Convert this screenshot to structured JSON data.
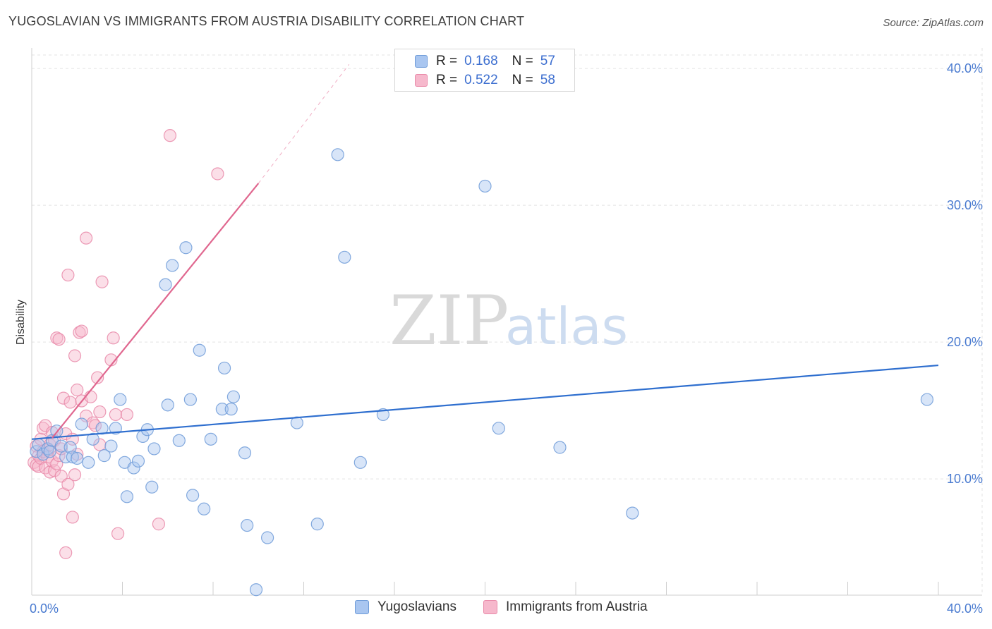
{
  "title": "YUGOSLAVIAN VS IMMIGRANTS FROM AUSTRIA DISABILITY CORRELATION CHART",
  "source": "Source: ZipAtlas.com",
  "watermark": {
    "zip": "ZIP",
    "atlas": "atlas"
  },
  "legend_top": {
    "rows": [
      {
        "r_label": "R =",
        "r_value": "0.168",
        "n_label": "N =",
        "n_value": "57"
      },
      {
        "r_label": "R =",
        "r_value": "0.522",
        "n_label": "N =",
        "n_value": "58"
      }
    ]
  },
  "legend_bottom": {
    "items": [
      {
        "label": "Yugoslavians"
      },
      {
        "label": "Immigrants from Austria"
      }
    ]
  },
  "colors": {
    "blue_fill": "#a9c6f0",
    "blue_stroke": "#6e9bd8",
    "blue_line": "#2f6fcf",
    "pink_fill": "#f6b8cc",
    "pink_stroke": "#e98aa9",
    "pink_line": "#e0678f",
    "grid": "#e3e3e3",
    "axis": "#cfcfcf",
    "tick_text": "#4a7bd0"
  },
  "chart_data": {
    "type": "scatter",
    "title": "YUGOSLAVIAN VS IMMIGRANTS FROM AUSTRIA DISABILITY CORRELATION CHART",
    "xlabel": "",
    "ylabel": "Disability",
    "xlim": [
      0,
      40
    ],
    "ylim": [
      1.5,
      41.5
    ],
    "x_tick_labels": [
      "0.0%",
      "40.0%"
    ],
    "y_ticks": [
      10,
      20,
      30,
      40
    ],
    "y_tick_labels": [
      "10.0%",
      "20.0%",
      "30.0%",
      "40.0%"
    ],
    "grid": true,
    "series": [
      {
        "name": "Yugoslavians",
        "r": 0.168,
        "n": 57,
        "trend": {
          "x": [
            0,
            40
          ],
          "y": [
            12.9,
            18.3
          ]
        },
        "points": [
          [
            0.2,
            12.0
          ],
          [
            0.3,
            12.5
          ],
          [
            0.5,
            11.8
          ],
          [
            0.7,
            12.2
          ],
          [
            0.9,
            12.8
          ],
          [
            1.1,
            13.5
          ],
          [
            1.3,
            12.4
          ],
          [
            1.5,
            11.6
          ],
          [
            1.7,
            12.3
          ],
          [
            1.8,
            11.6
          ],
          [
            2.2,
            14.0
          ],
          [
            2.5,
            11.2
          ],
          [
            2.7,
            12.9
          ],
          [
            3.1,
            13.7
          ],
          [
            3.2,
            11.7
          ],
          [
            3.5,
            12.4
          ],
          [
            3.7,
            13.7
          ],
          [
            3.9,
            15.8
          ],
          [
            4.1,
            11.2
          ],
          [
            4.2,
            8.7
          ],
          [
            4.5,
            10.8
          ],
          [
            4.7,
            11.3
          ],
          [
            4.9,
            13.1
          ],
          [
            5.1,
            13.6
          ],
          [
            5.3,
            9.4
          ],
          [
            5.4,
            12.2
          ],
          [
            5.9,
            24.2
          ],
          [
            6.0,
            15.4
          ],
          [
            6.2,
            25.6
          ],
          [
            6.5,
            12.8
          ],
          [
            6.8,
            26.9
          ],
          [
            7.0,
            15.8
          ],
          [
            7.1,
            8.8
          ],
          [
            7.4,
            19.4
          ],
          [
            7.6,
            7.8
          ],
          [
            7.9,
            12.9
          ],
          [
            8.4,
            15.1
          ],
          [
            8.5,
            18.1
          ],
          [
            8.8,
            15.1
          ],
          [
            8.9,
            16.0
          ],
          [
            9.4,
            11.9
          ],
          [
            9.5,
            6.6
          ],
          [
            9.9,
            1.9
          ],
          [
            10.4,
            5.7
          ],
          [
            11.7,
            14.1
          ],
          [
            12.6,
            6.7
          ],
          [
            13.5,
            33.7
          ],
          [
            13.8,
            26.2
          ],
          [
            14.5,
            11.2
          ],
          [
            15.5,
            14.7
          ],
          [
            20.0,
            31.4
          ],
          [
            20.6,
            13.7
          ],
          [
            23.3,
            12.3
          ],
          [
            26.5,
            7.5
          ],
          [
            39.5,
            15.8
          ],
          [
            0.8,
            12.0
          ],
          [
            2.0,
            11.5
          ]
        ]
      },
      {
        "name": "Immigrants from Austria",
        "r": 0.522,
        "n": 58,
        "trend": {
          "x": [
            0.9,
            10.0
          ],
          "y": [
            13.0,
            31.6
          ]
        },
        "trend_extension": {
          "x": [
            10.0,
            14.0
          ],
          "y": [
            31.6,
            40.3
          ]
        },
        "points": [
          [
            0.1,
            11.2
          ],
          [
            0.2,
            11.0
          ],
          [
            0.2,
            12.4
          ],
          [
            0.3,
            11.7
          ],
          [
            0.3,
            10.9
          ],
          [
            0.4,
            12.9
          ],
          [
            0.4,
            11.5
          ],
          [
            0.5,
            13.7
          ],
          [
            0.5,
            12.0
          ],
          [
            0.6,
            13.9
          ],
          [
            0.6,
            10.8
          ],
          [
            0.7,
            12.1
          ],
          [
            0.7,
            11.6
          ],
          [
            0.8,
            12.5
          ],
          [
            0.8,
            10.5
          ],
          [
            0.9,
            13.4
          ],
          [
            0.9,
            11.3
          ],
          [
            1.0,
            12.8
          ],
          [
            1.0,
            10.6
          ],
          [
            1.1,
            20.3
          ],
          [
            1.1,
            11.1
          ],
          [
            1.2,
            20.2
          ],
          [
            1.2,
            11.7
          ],
          [
            1.3,
            10.2
          ],
          [
            1.3,
            12.2
          ],
          [
            1.4,
            15.9
          ],
          [
            1.4,
            8.9
          ],
          [
            1.5,
            13.3
          ],
          [
            1.5,
            4.6
          ],
          [
            1.6,
            24.9
          ],
          [
            1.6,
            9.6
          ],
          [
            1.7,
            15.6
          ],
          [
            1.8,
            12.9
          ],
          [
            1.8,
            7.2
          ],
          [
            1.9,
            19.0
          ],
          [
            1.9,
            10.3
          ],
          [
            2.0,
            16.5
          ],
          [
            2.0,
            11.8
          ],
          [
            2.1,
            20.7
          ],
          [
            2.2,
            20.8
          ],
          [
            2.2,
            15.7
          ],
          [
            2.4,
            27.6
          ],
          [
            2.4,
            14.6
          ],
          [
            2.6,
            16.0
          ],
          [
            2.7,
            14.1
          ],
          [
            2.8,
            13.9
          ],
          [
            2.9,
            17.4
          ],
          [
            3.0,
            14.9
          ],
          [
            3.0,
            12.5
          ],
          [
            3.1,
            24.4
          ],
          [
            3.5,
            18.7
          ],
          [
            3.6,
            20.3
          ],
          [
            3.7,
            14.7
          ],
          [
            3.8,
            6.0
          ],
          [
            4.2,
            14.7
          ],
          [
            5.6,
            6.7
          ],
          [
            6.1,
            35.1
          ],
          [
            8.2,
            32.3
          ]
        ]
      }
    ]
  }
}
